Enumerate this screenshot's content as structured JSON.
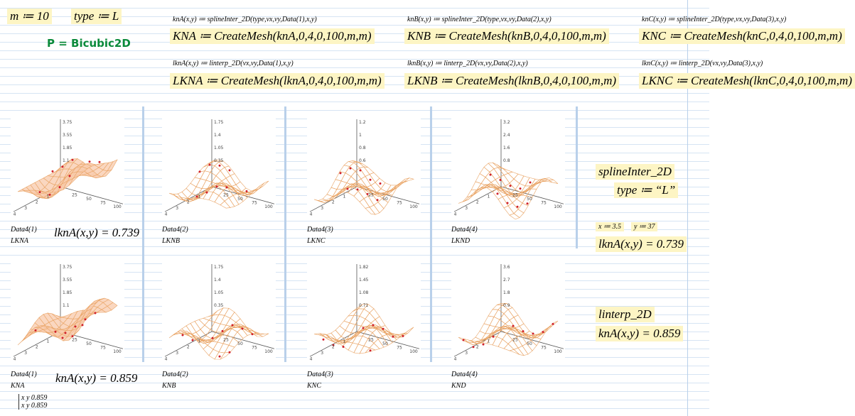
{
  "header": {
    "m_def": "m ≔ 10",
    "type_def": "type ≔ L",
    "p_label": "P = Bicubic2D"
  },
  "definitions": [
    {
      "func": "knA(x,y) ≔ splineInter_2D(type,vx,vy,Data(1),x,y)",
      "mesh": "KNA ≔ CreateMesh(knA,0,4,0,100,m,m)",
      "lfunc": "lknA(x,y) ≔ linterp_2D(vx,vy,Data(1),x,y)",
      "lmesh": "LKNA ≔ CreateMesh(lknA,0,4,0,100,m,m)"
    },
    {
      "func": "knB(x,y) ≔ splineInter_2D(type,vx,vy,Data(2),x,y)",
      "mesh": "KNB ≔ CreateMesh(knB,0,4,0,100,m,m)",
      "lfunc": "lknB(x,y) ≔ linterp_2D(vx,vy,Data(2),x,y)",
      "lmesh": "LKNB ≔ CreateMesh(lknB,0,4,0,100,m,m)"
    },
    {
      "func": "knC(x,y) ≔ splineInter_2D(type,vx,vy,Data(3),x,y)",
      "mesh": "KNC ≔ CreateMesh(knC,0,4,0,100,m,m)",
      "lfunc": "lknC(x,y) ≔ linterp_2D(vx,vy,Data(3),x,y)",
      "lmesh": "LKNC ≔ CreateMesh(lknC,0,4,0,100,m,m)"
    }
  ],
  "plots": [
    {
      "caption": "Data4(1)",
      "name": "LKNA",
      "zticks": [
        "3.75",
        "3.55",
        "1.85",
        "1.1"
      ],
      "xticks": [
        "25",
        "50",
        "75",
        "100"
      ],
      "yticks": [
        "4",
        "3",
        "2",
        "1"
      ]
    },
    {
      "caption": "Data4(2)",
      "name": "LKNB",
      "zticks": [
        "1.75",
        "1.4",
        "1.05",
        "0.35"
      ],
      "xticks": [
        "25",
        "50",
        "75",
        "100"
      ],
      "yticks": [
        "4",
        "3",
        "2",
        "1"
      ]
    },
    {
      "caption": "Data4(3)",
      "name": "LKNC",
      "zticks": [
        "1.2",
        "1",
        "0.8",
        "0.6"
      ],
      "xticks": [
        "25",
        "50",
        "75",
        "100"
      ],
      "yticks": [
        "4",
        "3",
        "2",
        "1"
      ]
    },
    {
      "caption": "Data4(4)",
      "name": "LKND",
      "zticks": [
        "3.2",
        "2.4",
        "1.6",
        "0.8"
      ],
      "xticks": [
        "25",
        "50",
        "75",
        "100"
      ],
      "yticks": [
        "4",
        "3",
        "2",
        "1"
      ]
    },
    {
      "caption": "Data4(1)",
      "name": "KNA",
      "zticks": [
        "3.75",
        "3.55",
        "1.85",
        "1.1"
      ],
      "xticks": [
        "25",
        "50",
        "75",
        "100"
      ],
      "yticks": [
        "4",
        "3",
        "2",
        "1"
      ]
    },
    {
      "caption": "Data4(2)",
      "name": "KNB",
      "zticks": [
        "1.75",
        "1.4",
        "1.05",
        "0.35"
      ],
      "xticks": [
        "25",
        "50",
        "75",
        "100"
      ],
      "yticks": [
        "4",
        "3",
        "2",
        "1"
      ]
    },
    {
      "caption": "Data4(3)",
      "name": "KNC",
      "zticks": [
        "1.82",
        "1.45",
        "1.08",
        "0.71"
      ],
      "xticks": [
        "25",
        "50",
        "75",
        "100"
      ],
      "yticks": [
        "4",
        "3",
        "2",
        "1"
      ]
    },
    {
      "caption": "Data4(4)",
      "name": "KND",
      "zticks": [
        "3.6",
        "2.7",
        "1.8",
        "0.9"
      ],
      "xticks": [
        "25",
        "50",
        "75",
        "100"
      ],
      "yticks": [
        "4",
        "3",
        "2",
        "1"
      ]
    }
  ],
  "results": {
    "lkna_eval": "lknA(x,y) = 0.739",
    "kna_eval": "knA(x,y) = 0.859"
  },
  "side": {
    "spline_label": "splineInter_2D",
    "type_str": "type ≔ “L”",
    "x_def": "x ≔ 3.5",
    "y_def": "y ≔ 37",
    "lkna_eval": "lknA(x,y) = 0.739",
    "linterp_label": "linterp_2D",
    "kna_eval": "knA(x,y) = 0.859"
  },
  "matrix": {
    "rows": [
      [
        "x y 0.859"
      ],
      [
        "x y 0.859"
      ]
    ]
  }
}
